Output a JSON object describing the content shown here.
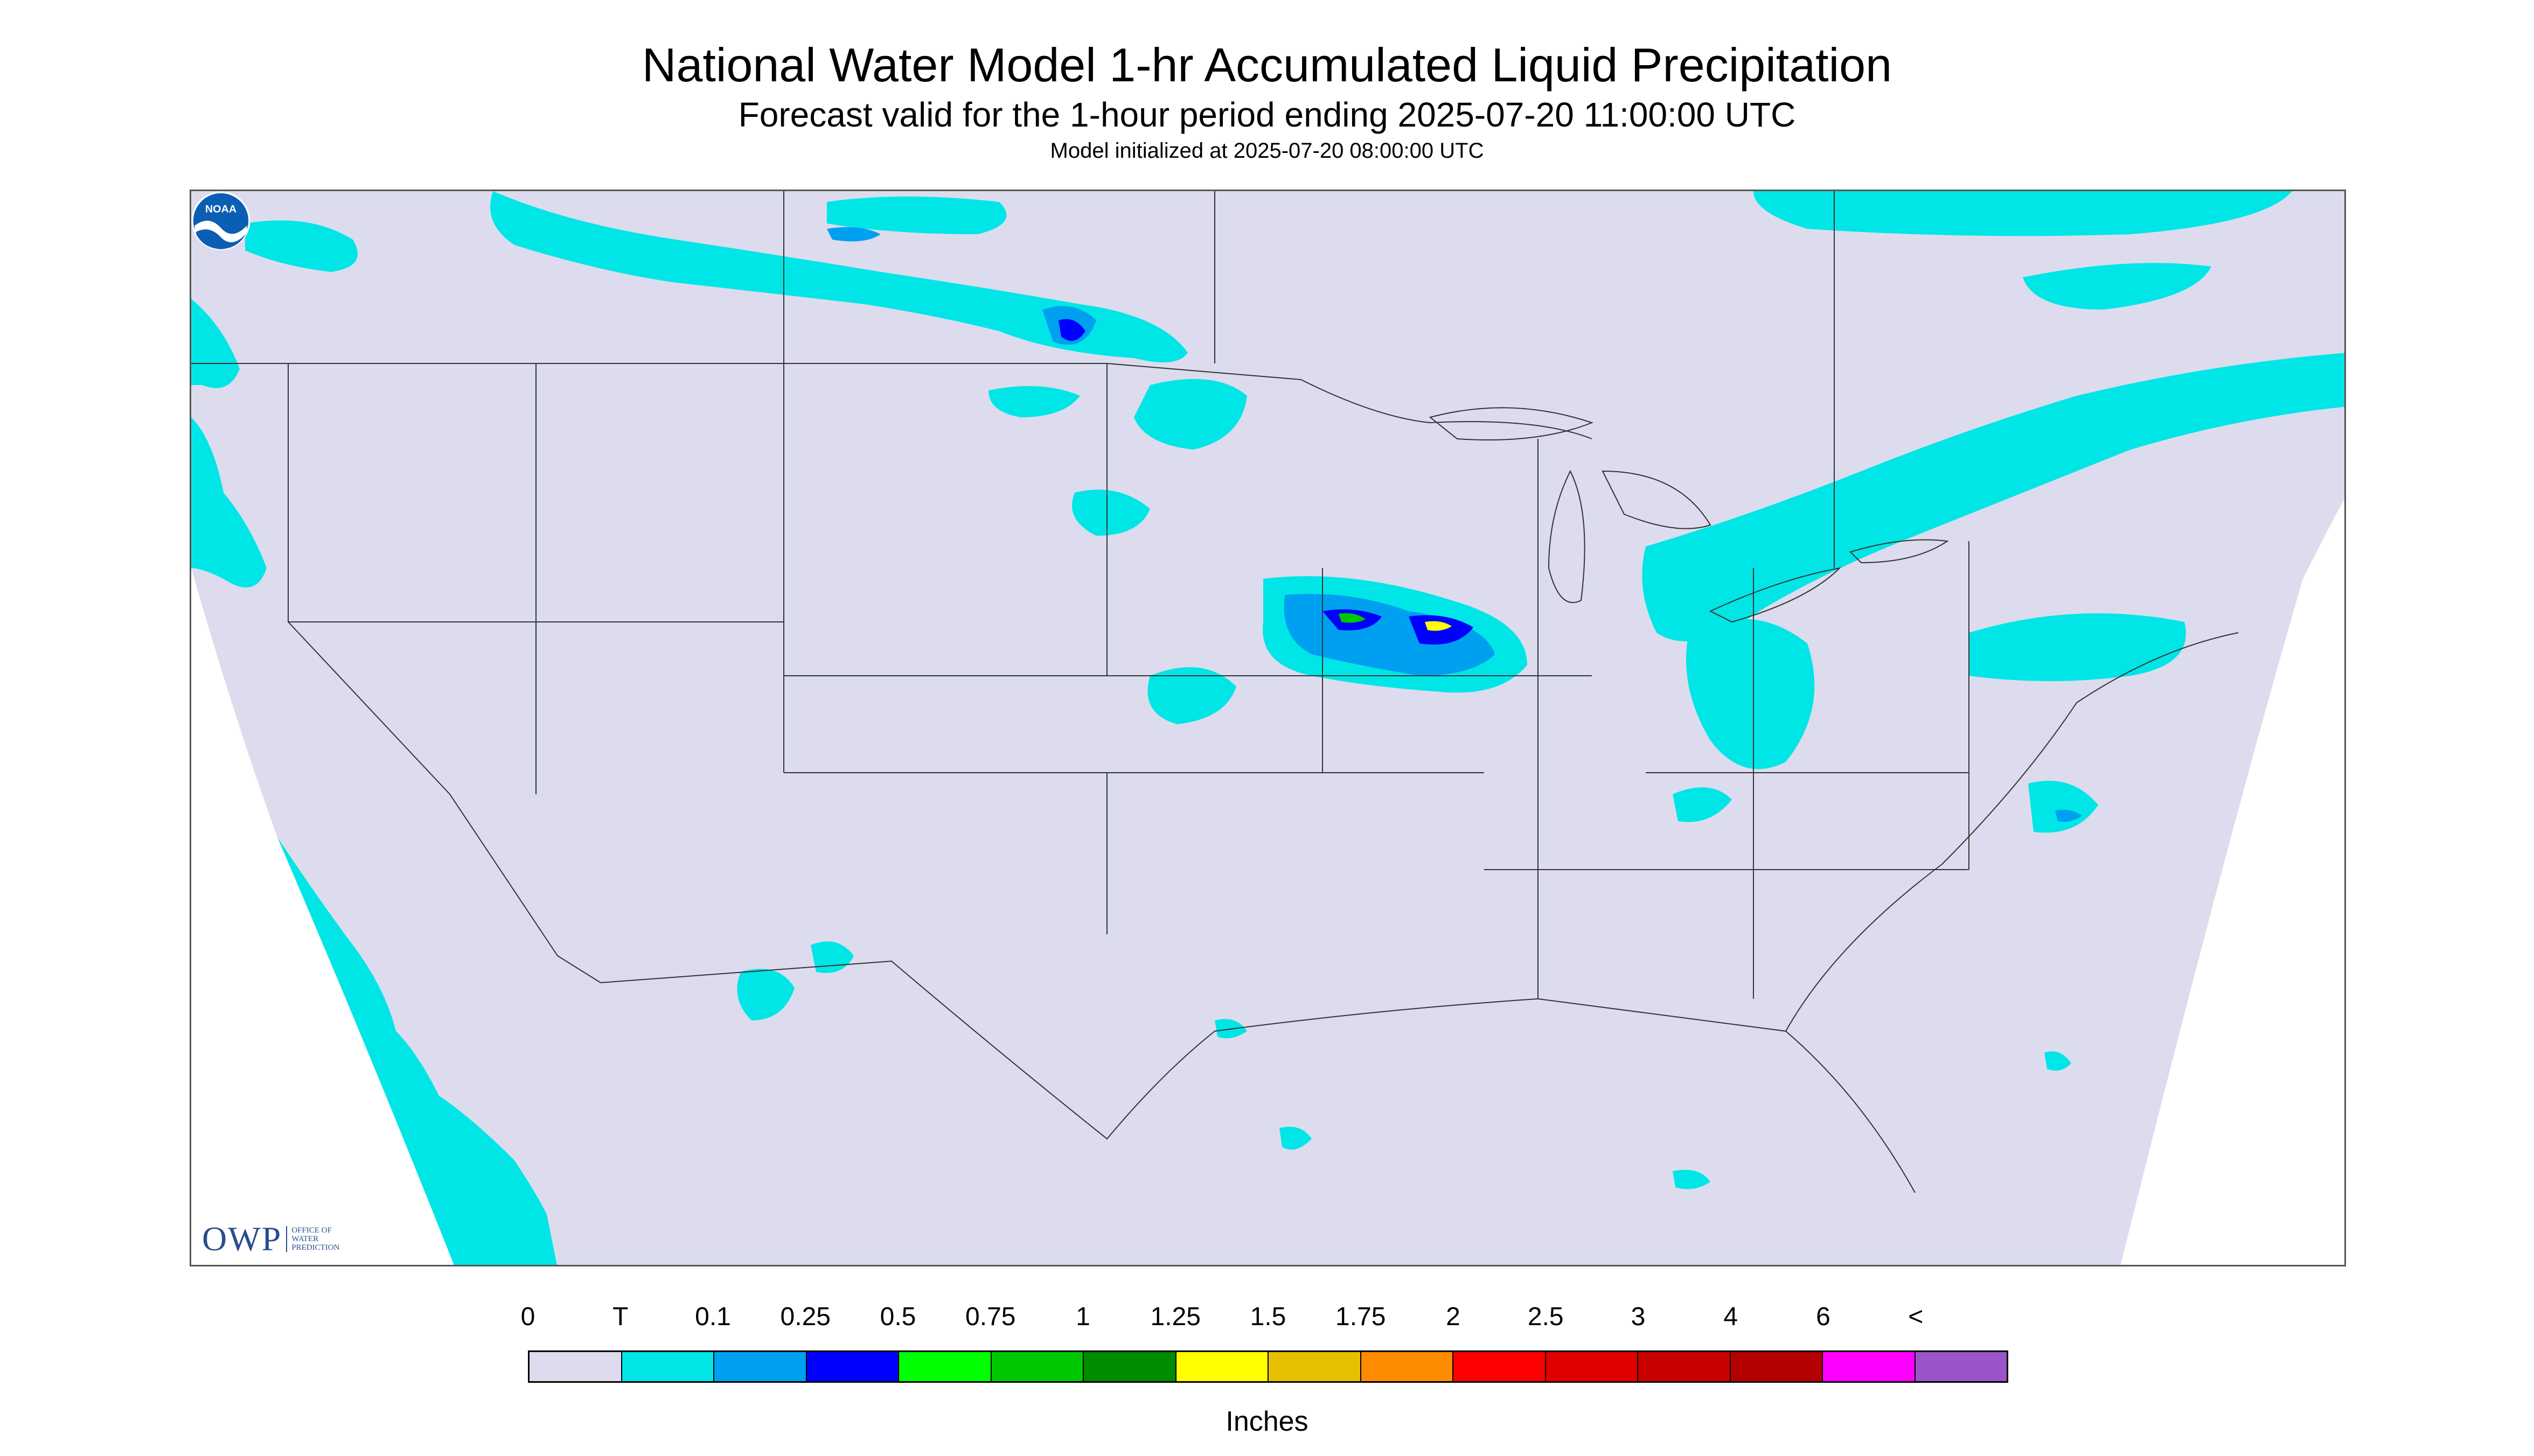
{
  "title": "National Water Model 1-hr Accumulated Liquid Precipitation",
  "subtitle": "Forecast valid for the 1-hour period ending 2025-07-20 11:00:00 UTC",
  "init_text": "Model initialized at 2025-07-20 08:00:00 UTC",
  "legend": {
    "labels": [
      "0",
      "T",
      "0.1",
      "0.25",
      "0.5",
      "0.75",
      "1",
      "1.25",
      "1.5",
      "1.75",
      "2",
      "2.5",
      "3",
      "4",
      "6",
      "<"
    ],
    "colors": [
      "#dcdcee",
      "#00e6e6",
      "#00a0f0",
      "#0000ff",
      "#00ff00",
      "#00c800",
      "#008c00",
      "#ffff00",
      "#e6c000",
      "#ff8c00",
      "#ff0000",
      "#e00000",
      "#c80000",
      "#b40000",
      "#ff00ff",
      "#9955c9"
    ],
    "unit": "Inches"
  },
  "map": {
    "background_color": "#dcdcee",
    "trace_color": "#00e6e6",
    "light_blue": "#00a0f0",
    "dark_blue": "#0000ff",
    "green": "#00c800",
    "yellow": "#ffff00"
  },
  "logos": {
    "owp_text": "OWP",
    "owp_sub": [
      "OFFICE OF",
      "WATER",
      "PREDICTION"
    ],
    "noaa_text": "NOAA"
  }
}
